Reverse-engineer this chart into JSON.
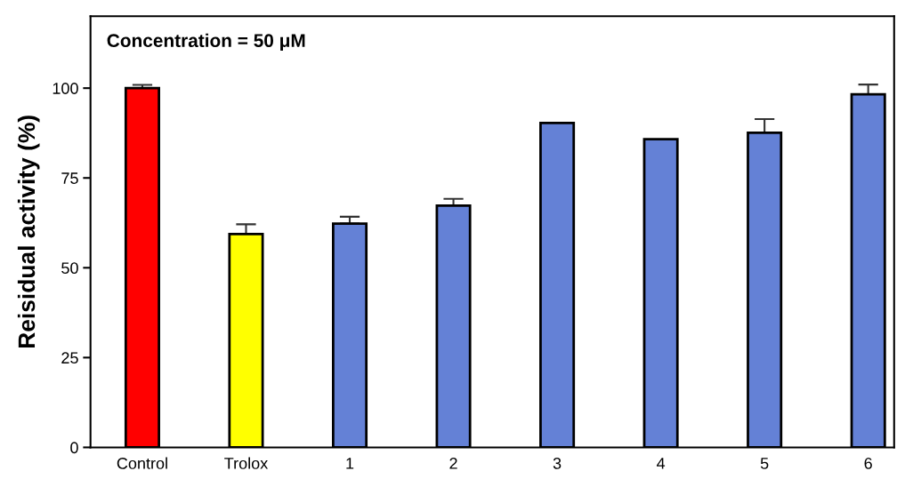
{
  "chart_data": {
    "type": "bar",
    "ylabel": "Reisidual activity (%)",
    "annotations": [
      "Concentration = 50 μM"
    ],
    "categories": [
      "Control",
      "Trolox",
      "1",
      "2",
      "3",
      "4",
      "5",
      "6"
    ],
    "values": [
      100,
      59.4,
      62.3,
      67.3,
      90.3,
      85.8,
      87.6,
      98.3
    ],
    "colors": [
      "#ff0000",
      "#ffff00",
      "#6481d6",
      "#6481d6",
      "#6481d6",
      "#6481d6",
      "#6481d6",
      "#6481d6"
    ],
    "errors": [
      [
        100,
        100.9
      ],
      [
        59.4,
        62.1
      ],
      [
        62.3,
        64.2
      ],
      [
        67.3,
        69.2
      ],
      null,
      null,
      [
        87.6,
        91.4
      ],
      [
        98.3,
        101.0
      ]
    ],
    "ylim": [
      0,
      120
    ],
    "yticks": [
      0,
      25,
      50,
      75,
      100
    ],
    "grid": false,
    "legend": false
  }
}
